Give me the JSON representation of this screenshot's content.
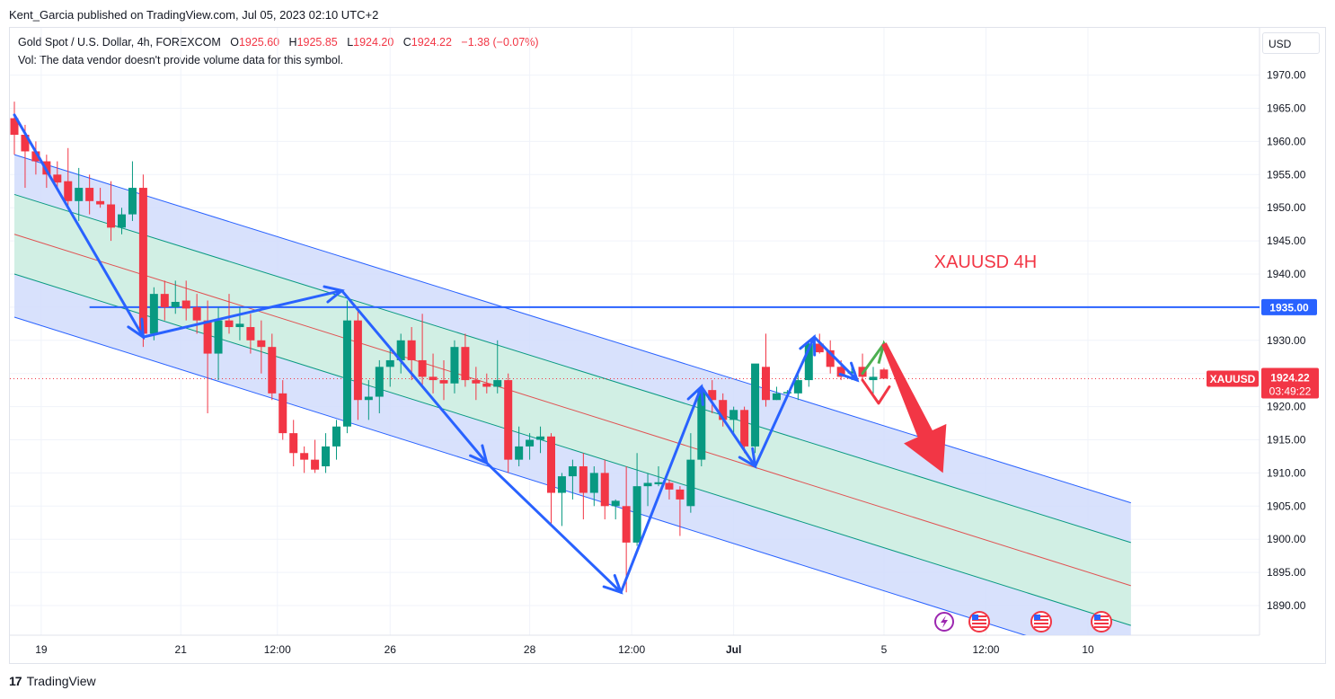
{
  "header": {
    "publisher": "Kent_Garcia published on TradingView.com, Jul 05, 2023 02:10 UTC+2",
    "symbol_desc": "Gold Spot / U.S. Dollar, 4h, FOREXCOM",
    "o_label": "O",
    "o_value": "1925.60",
    "h_label": "H",
    "h_value": "1925.85",
    "l_label": "L",
    "l_value": "1924.20",
    "c_label": "C",
    "c_value": "1924.22",
    "change": "−1.38 (−0.07%)",
    "vol_note": "Vol: The data vendor doesn't provide volume data for this symbol."
  },
  "currency": "USD",
  "footer": {
    "logo": "17",
    "brand": "TradingView"
  },
  "colors": {
    "up": "#089981",
    "down": "#f23645",
    "arrow": "#2962ff",
    "hline": "#2962ff",
    "channel_fill": "#d1dcfc",
    "inner_fill": "#d1efe4",
    "mid": "#e05252"
  },
  "chart_data": {
    "type": "candlestick",
    "title": "XAUUSD 4H",
    "ylim": [
      1885,
      1975
    ],
    "y_ticks": [
      "1970.00",
      "1965.00",
      "1960.00",
      "1955.00",
      "1950.00",
      "1945.00",
      "1940.00",
      "1935.00",
      "1930.00",
      "1925.00",
      "1920.00",
      "1915.00",
      "1910.00",
      "1905.00",
      "1900.00",
      "1895.00",
      "1890.00"
    ],
    "x_ticks": [
      {
        "label": "19",
        "i": 2.5
      },
      {
        "label": "21",
        "i": 15.5
      },
      {
        "label": "12:00",
        "i": 24.5
      },
      {
        "label": "26",
        "i": 35
      },
      {
        "label": "28",
        "i": 48
      },
      {
        "label": "12:00",
        "i": 57.5
      },
      {
        "label": "Jul",
        "i": 67
      },
      {
        "label": "5",
        "i": 81
      },
      {
        "label": "12:00",
        "i": 90.5
      },
      {
        "label": "10",
        "i": 100
      }
    ],
    "candles": [
      [
        1963.5,
        1966,
        1958,
        1961
      ],
      [
        1961,
        1962.5,
        1953,
        1958.5
      ],
      [
        1958.5,
        1960,
        1955,
        1957
      ],
      [
        1957,
        1958,
        1953,
        1955
      ],
      [
        1955,
        1957,
        1953,
        1953.8
      ],
      [
        1954,
        1959,
        1950,
        1951
      ],
      [
        1951,
        1956,
        1948,
        1953
      ],
      [
        1953,
        1955,
        1949,
        1951
      ],
      [
        1951,
        1953,
        1950,
        1950.5
      ],
      [
        1950.5,
        1954,
        1945,
        1947
      ],
      [
        1947,
        1950,
        1946,
        1949
      ],
      [
        1949,
        1957,
        1948,
        1953
      ],
      [
        1953,
        1955,
        1929,
        1931
      ],
      [
        1931,
        1938,
        1930,
        1937
      ],
      [
        1937,
        1939,
        1933,
        1935
      ],
      [
        1935,
        1939,
        1934,
        1935.8
      ],
      [
        1936,
        1939,
        1933,
        1934.8
      ],
      [
        1935,
        1937,
        1931,
        1933
      ],
      [
        1933,
        1936,
        1919,
        1928
      ],
      [
        1928,
        1935,
        1924,
        1933
      ],
      [
        1933,
        1937,
        1931,
        1932
      ],
      [
        1932,
        1935,
        1930,
        1932.5
      ],
      [
        1932,
        1934,
        1928,
        1930
      ],
      [
        1930,
        1933,
        1925,
        1929
      ],
      [
        1929,
        1931,
        1921,
        1922
      ],
      [
        1922,
        1924,
        1915,
        1916
      ],
      [
        1916,
        1918,
        1911,
        1913
      ],
      [
        1913,
        1914,
        1910,
        1912
      ],
      [
        1912,
        1915,
        1910,
        1910.5
      ],
      [
        1911,
        1916,
        1910,
        1914
      ],
      [
        1914,
        1918,
        1912,
        1917
      ],
      [
        1917,
        1936,
        1916,
        1933
      ],
      [
        1933,
        1935,
        1918,
        1921
      ],
      [
        1921,
        1924,
        1918,
        1921.5
      ],
      [
        1921.5,
        1927,
        1919,
        1926
      ],
      [
        1926,
        1929,
        1923,
        1927
      ],
      [
        1927,
        1931,
        1925,
        1930
      ],
      [
        1930,
        1932,
        1924,
        1927
      ],
      [
        1927,
        1934,
        1923,
        1924.5
      ],
      [
        1924.5,
        1928,
        1922,
        1924
      ],
      [
        1924,
        1927,
        1921,
        1923.5
      ],
      [
        1923.5,
        1930,
        1922,
        1929
      ],
      [
        1929,
        1931,
        1923,
        1924
      ],
      [
        1924,
        1926,
        1921,
        1923.5
      ],
      [
        1923.5,
        1925,
        1922,
        1923
      ],
      [
        1923,
        1930,
        1922,
        1924
      ],
      [
        1924,
        1925,
        1910,
        1912
      ],
      [
        1912,
        1917,
        1911,
        1914
      ],
      [
        1914,
        1916,
        1912,
        1915
      ],
      [
        1915,
        1917,
        1913,
        1915.5
      ],
      [
        1915.5,
        1916,
        1902,
        1907
      ],
      [
        1907,
        1910,
        1902,
        1909.5
      ],
      [
        1909.5,
        1912,
        1906,
        1911
      ],
      [
        1911,
        1913,
        1903,
        1907
      ],
      [
        1907,
        1911,
        1905,
        1910
      ],
      [
        1910,
        1912,
        1903,
        1905
      ],
      [
        1905,
        1906,
        1903,
        1905.8
      ],
      [
        1905,
        1911,
        1892,
        1899.5
      ],
      [
        1899.5,
        1913,
        1899,
        1908
      ],
      [
        1908,
        1910,
        1905,
        1908.5
      ],
      [
        1908.3,
        1911,
        1908,
        1908.6
      ],
      [
        1908.5,
        1909,
        1906,
        1907.5
      ],
      [
        1907.5,
        1908,
        1900.5,
        1906
      ],
      [
        1905,
        1916,
        1904,
        1912
      ],
      [
        1912,
        1923,
        1911,
        1922.5
      ],
      [
        1922.5,
        1924,
        1919,
        1921
      ],
      [
        1921,
        1922,
        1917,
        1918
      ],
      [
        1918,
        1920,
        1916,
        1919.5
      ],
      [
        1919.5,
        1920,
        1913,
        1914
      ],
      [
        1914,
        1926,
        1913,
        1926.5
      ],
      [
        1926,
        1931,
        1920,
        1921
      ],
      [
        1921,
        1923,
        1921,
        1922
      ],
      [
        1922,
        1922.5,
        1921.3,
        1922.2
      ],
      [
        1922,
        1925,
        1921,
        1924
      ],
      [
        1924,
        1930,
        1923,
        1929.5
      ],
      [
        1929.5,
        1931,
        1928,
        1928.2
      ],
      [
        1928.5,
        1930,
        1925,
        1926
      ],
      [
        1926,
        1927,
        1924,
        1924.5
      ],
      [
        1925,
        1926,
        1924,
        1925.3
      ],
      [
        1926,
        1928,
        1924,
        1924.5
      ],
      [
        1924,
        1926,
        1922,
        1924.5
      ],
      [
        1925.6,
        1925.85,
        1924.2,
        1924.22
      ]
    ],
    "channel": {
      "upper": [
        [
          0,
          1958
        ],
        [
          104,
          1905.5
        ]
      ],
      "inner_upper": [
        [
          0,
          1952
        ],
        [
          104,
          1899.5
        ]
      ],
      "mid": [
        [
          0,
          1946
        ],
        [
          104,
          1893
        ]
      ],
      "inner_lower": [
        [
          0,
          1940
        ],
        [
          104,
          1887
        ]
      ],
      "lower": [
        [
          0,
          1933.5
        ],
        [
          104,
          1880.5
        ]
      ]
    },
    "hline": {
      "value": 1935,
      "label": "1935.00",
      "from_i": 7
    },
    "last_price": {
      "symbol": "XAUUSD",
      "value": "1924.22",
      "countdown": "03:49:22"
    },
    "pattern_path": [
      [
        0,
        1964
      ],
      [
        12,
        1930.5
      ],
      [
        30.5,
        1937.5
      ],
      [
        44,
        1911.5
      ],
      [
        56.5,
        1892
      ],
      [
        64,
        1923
      ],
      [
        69,
        1911
      ],
      [
        74.5,
        1930.5
      ],
      [
        78.5,
        1924
      ]
    ],
    "projection_up": [
      [
        79,
        1925
      ],
      [
        81,
        1929.5
      ]
    ],
    "projection_down": [
      [
        79,
        1924
      ],
      [
        80.5,
        1920.5
      ],
      [
        81.5,
        1923
      ]
    ],
    "big_arrow": [
      [
        81,
        1929.5
      ],
      [
        86.5,
        1910
      ]
    ]
  }
}
